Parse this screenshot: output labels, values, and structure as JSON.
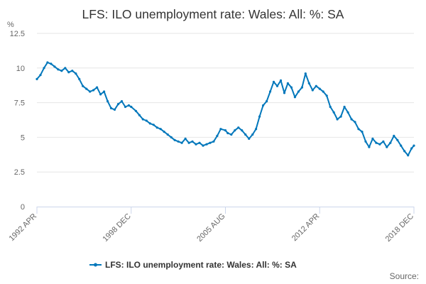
{
  "chart_data": {
    "type": "line",
    "title": "LFS: ILO unemployment rate: Wales: All: %: SA",
    "unit_label": "%",
    "ylim": [
      0,
      12.5
    ],
    "yticks": [
      "0",
      "2.5",
      "5",
      "7.5",
      "10",
      "12.5"
    ],
    "xticks": [
      "1992 APR",
      "1998 DEC",
      "2005 AUG",
      "2012 APR",
      "2018 DEC"
    ],
    "grid": true,
    "legend_position": "bottom-center",
    "color": "#0077bb",
    "series": [
      {
        "name": "LFS: ILO unemployment rate: Wales: All: %: SA",
        "x": [
          "1992-04",
          "1992-07",
          "1992-10",
          "1993-01",
          "1993-04",
          "1993-07",
          "1993-10",
          "1994-01",
          "1994-04",
          "1994-07",
          "1994-10",
          "1995-01",
          "1995-04",
          "1995-07",
          "1995-10",
          "1996-01",
          "1996-04",
          "1996-07",
          "1996-10",
          "1997-01",
          "1997-04",
          "1997-07",
          "1997-10",
          "1998-01",
          "1998-04",
          "1998-07",
          "1998-10",
          "1998-12",
          "1999-04",
          "1999-07",
          "1999-10",
          "2000-01",
          "2000-04",
          "2000-07",
          "2000-10",
          "2001-01",
          "2001-04",
          "2001-07",
          "2001-10",
          "2002-01",
          "2002-04",
          "2002-07",
          "2002-10",
          "2003-01",
          "2003-04",
          "2003-07",
          "2003-10",
          "2004-01",
          "2004-04",
          "2004-07",
          "2004-10",
          "2005-01",
          "2005-04",
          "2005-08",
          "2005-10",
          "2006-01",
          "2006-04",
          "2006-07",
          "2006-10",
          "2007-01",
          "2007-04",
          "2007-07",
          "2007-10",
          "2008-01",
          "2008-04",
          "2008-07",
          "2008-10",
          "2009-01",
          "2009-04",
          "2009-07",
          "2009-10",
          "2010-01",
          "2010-04",
          "2010-07",
          "2010-10",
          "2011-01",
          "2011-04",
          "2011-07",
          "2011-10",
          "2012-01",
          "2012-04",
          "2012-07",
          "2012-10",
          "2013-01",
          "2013-04",
          "2013-07",
          "2013-10",
          "2014-01",
          "2014-04",
          "2014-07",
          "2014-10",
          "2015-01",
          "2015-04",
          "2015-07",
          "2015-10",
          "2016-01",
          "2016-04",
          "2016-07",
          "2016-10",
          "2017-01",
          "2017-04",
          "2017-07",
          "2017-10",
          "2018-01",
          "2018-04",
          "2018-07",
          "2018-10",
          "2018-12"
        ],
        "values": [
          9.2,
          9.5,
          10.0,
          10.4,
          10.3,
          10.1,
          9.9,
          9.8,
          10.0,
          9.7,
          9.8,
          9.6,
          9.2,
          8.7,
          8.5,
          8.3,
          8.4,
          8.6,
          8.1,
          8.3,
          7.6,
          7.1,
          7.0,
          7.4,
          7.6,
          7.2,
          7.3,
          7.2,
          6.9,
          6.6,
          6.3,
          6.2,
          6.0,
          5.9,
          5.7,
          5.6,
          5.4,
          5.2,
          5.0,
          4.8,
          4.7,
          4.6,
          4.9,
          4.6,
          4.7,
          4.5,
          4.6,
          4.4,
          4.5,
          4.6,
          4.7,
          5.1,
          5.6,
          5.5,
          5.3,
          5.2,
          5.5,
          5.7,
          5.5,
          5.2,
          4.9,
          5.2,
          5.6,
          6.5,
          7.3,
          7.6,
          8.3,
          9.0,
          8.7,
          9.1,
          8.2,
          8.9,
          8.6,
          7.9,
          8.3,
          8.6,
          9.6,
          8.9,
          8.4,
          8.7,
          8.5,
          8.3,
          8.0,
          7.2,
          6.8,
          6.3,
          6.5,
          7.2,
          6.8,
          6.3,
          6.1,
          5.6,
          5.4,
          4.7,
          4.3,
          4.9,
          4.6,
          4.5,
          4.7,
          4.3,
          4.6,
          5.1,
          4.8,
          4.4,
          4.0,
          3.7,
          4.2,
          4.4
        ]
      }
    ]
  },
  "legend": {
    "label": "LFS: ILO unemployment rate: Wales: All: %: SA"
  },
  "credits": {
    "label": "Source:"
  }
}
